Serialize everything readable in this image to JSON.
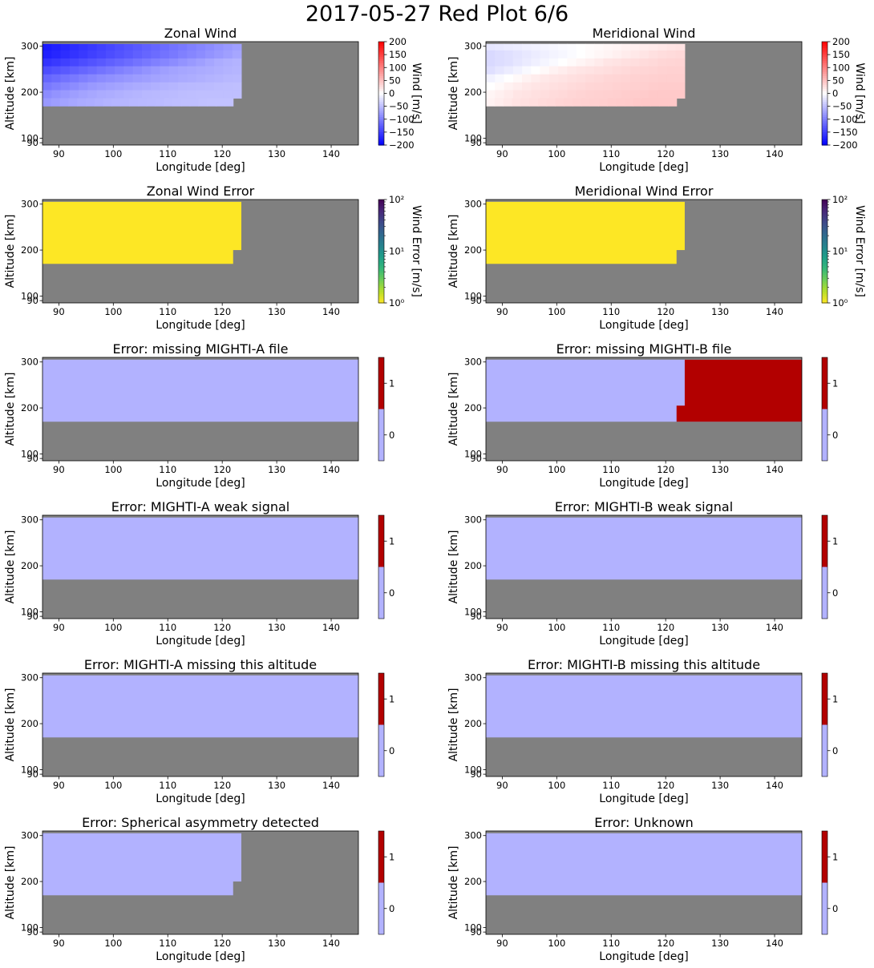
{
  "suptitle": "2017-05-27 Red Plot 6/6",
  "colors": {
    "missing": "#808080",
    "flag_off": "#b2b2ff",
    "flag_on": "#b20000",
    "error_low": "#fde725"
  },
  "chart_data": [
    {
      "type": "heatmap",
      "title": "Zonal Wind",
      "xlabel": "Longitude [deg]",
      "ylabel": "Altitude [km]",
      "xlim": [
        87,
        145
      ],
      "ylim": [
        85,
        310
      ],
      "xticks": [
        90,
        100,
        110,
        120,
        130,
        140
      ],
      "yticks": [
        90,
        100,
        200,
        300
      ],
      "colormap": "bwr",
      "clim": [
        -200,
        200
      ],
      "colorbar": {
        "label": "Wind [m/s]",
        "scale": "linear",
        "ticks": [
          "200",
          "150",
          "100",
          "50",
          "0",
          "−50",
          "−100",
          "−150",
          "−200"
        ]
      },
      "altitudes": [
        300,
        282,
        265,
        248,
        230,
        213,
        196,
        178
      ],
      "longitude_extent_by_row": [
        123.5,
        123.5,
        123.5,
        123.5,
        123.5,
        123.5,
        123.5,
        122
      ],
      "values": [
        [
          -180,
          -175,
          -170,
          -165,
          -160,
          -155,
          -150,
          -145,
          -140,
          -135,
          -130,
          -125,
          -120,
          -115,
          -110,
          -105,
          -100,
          -95,
          -90,
          -85,
          -80,
          -75
        ],
        [
          -175,
          -170,
          -165,
          -160,
          -155,
          -150,
          -145,
          -140,
          -135,
          -130,
          -125,
          -120,
          -115,
          -110,
          -105,
          -100,
          -95,
          -90,
          -85,
          -80,
          -75,
          -70
        ],
        [
          -160,
          -155,
          -150,
          -145,
          -140,
          -135,
          -130,
          -125,
          -120,
          -115,
          -110,
          -105,
          -100,
          -95,
          -90,
          -85,
          -80,
          -75,
          -70,
          -65,
          -62,
          -60
        ],
        [
          -140,
          -135,
          -130,
          -125,
          -120,
          -115,
          -110,
          -105,
          -100,
          -95,
          -90,
          -85,
          -80,
          -75,
          -72,
          -70,
          -68,
          -66,
          -64,
          -62,
          -60,
          -58
        ],
        [
          -120,
          -115,
          -110,
          -105,
          -100,
          -95,
          -90,
          -87,
          -84,
          -81,
          -78,
          -75,
          -72,
          -70,
          -68,
          -66,
          -64,
          -62,
          -60,
          -58,
          -56,
          -55
        ],
        [
          -105,
          -100,
          -95,
          -90,
          -85,
          -80,
          -77,
          -74,
          -71,
          -68,
          -66,
          -64,
          -62,
          -60,
          -58,
          -56,
          -55,
          -54,
          -53,
          -52,
          -51,
          -50
        ],
        [
          -90,
          -85,
          -80,
          -76,
          -72,
          -69,
          -66,
          -64,
          -62,
          -60,
          -58,
          -56,
          -55,
          -54,
          -53,
          -52,
          -51,
          -50,
          -50,
          -50,
          -50,
          -50
        ],
        [
          -80,
          -76,
          -72,
          -69,
          -66,
          -64,
          -62,
          -60,
          -58,
          -57,
          -56,
          -55,
          -54,
          -53,
          -52,
          -51,
          -50,
          -50,
          -49,
          -48,
          -48,
          -48
        ]
      ]
    },
    {
      "type": "heatmap",
      "title": "Meridional Wind",
      "xlabel": "Longitude [deg]",
      "ylabel": "Altitude [km]",
      "xlim": [
        87,
        145
      ],
      "ylim": [
        85,
        310
      ],
      "xticks": [
        90,
        100,
        110,
        120,
        130,
        140
      ],
      "yticks": [
        90,
        100,
        200,
        300
      ],
      "colormap": "bwr",
      "clim": [
        -200,
        200
      ],
      "colorbar": {
        "label": "Wind [m/s]",
        "scale": "linear",
        "ticks": [
          "200",
          "150",
          "100",
          "50",
          "0",
          "−50",
          "−100",
          "−150",
          "−200"
        ]
      },
      "altitudes": [
        300,
        282,
        265,
        248,
        230,
        213,
        196,
        178
      ],
      "longitude_extent_by_row": [
        123.5,
        123.5,
        123.5,
        123.5,
        123.5,
        123.5,
        123.5,
        122
      ],
      "values": [
        [
          -20,
          -18,
          -16,
          -14,
          -12,
          -10,
          -8,
          -6,
          -4,
          -2,
          0,
          2,
          4,
          6,
          8,
          10,
          12,
          14,
          16,
          18,
          20,
          22
        ],
        [
          -30,
          -27,
          -24,
          -21,
          -18,
          -15,
          -12,
          -9,
          -6,
          -3,
          0,
          3,
          6,
          9,
          12,
          15,
          18,
          21,
          24,
          27,
          28,
          30
        ],
        [
          -30,
          -27,
          -24,
          -20,
          -16,
          -12,
          -8,
          -4,
          0,
          4,
          8,
          12,
          16,
          20,
          22,
          24,
          26,
          28,
          30,
          32,
          33,
          34
        ],
        [
          -25,
          -20,
          -15,
          -10,
          -5,
          0,
          5,
          10,
          14,
          18,
          20,
          22,
          24,
          26,
          28,
          30,
          32,
          33,
          34,
          35,
          36,
          36
        ],
        [
          -10,
          -5,
          0,
          5,
          10,
          14,
          18,
          20,
          22,
          24,
          26,
          28,
          30,
          32,
          33,
          34,
          35,
          36,
          37,
          38,
          38,
          38
        ],
        [
          0,
          5,
          10,
          14,
          18,
          20,
          22,
          24,
          26,
          28,
          30,
          32,
          33,
          34,
          35,
          36,
          37,
          38,
          39,
          40,
          40,
          40
        ],
        [
          8,
          12,
          16,
          20,
          22,
          24,
          26,
          28,
          30,
          32,
          34,
          35,
          36,
          37,
          38,
          39,
          40,
          41,
          42,
          42,
          42,
          42
        ],
        [
          10,
          14,
          18,
          22,
          24,
          26,
          28,
          30,
          32,
          34,
          35,
          36,
          37,
          38,
          39,
          40,
          41,
          42,
          43,
          43,
          43,
          43
        ]
      ]
    },
    {
      "type": "heatmap",
      "title": "Zonal Wind Error",
      "xlabel": "Longitude [deg]",
      "ylabel": "Altitude [km]",
      "xlim": [
        87,
        145
      ],
      "ylim": [
        85,
        310
      ],
      "xticks": [
        90,
        100,
        110,
        120,
        130,
        140
      ],
      "yticks": [
        90,
        100,
        200,
        300
      ],
      "colormap": "viridis_r",
      "clim": [
        1,
        100
      ],
      "colorbar": {
        "label": "Wind Error [m/s]",
        "scale": "log",
        "ticks": [
          "10²",
          "10¹",
          "10⁰"
        ]
      },
      "regions": [
        {
          "lon": [
            87,
            123.5
          ],
          "alt": [
            200,
            300
          ],
          "value": 1
        },
        {
          "lon": [
            87,
            122
          ],
          "alt": [
            170,
            200
          ],
          "value": 1
        }
      ]
    },
    {
      "type": "heatmap",
      "title": "Meridional Wind Error",
      "xlabel": "Longitude [deg]",
      "ylabel": "Altitude [km]",
      "xlim": [
        87,
        145
      ],
      "ylim": [
        85,
        310
      ],
      "xticks": [
        90,
        100,
        110,
        120,
        130,
        140
      ],
      "yticks": [
        90,
        100,
        200,
        300
      ],
      "colormap": "viridis_r",
      "clim": [
        1,
        100
      ],
      "colorbar": {
        "label": "Wind Error [m/s]",
        "scale": "log",
        "ticks": [
          "10²",
          "10¹",
          "10⁰"
        ]
      },
      "regions": [
        {
          "lon": [
            87,
            123.5
          ],
          "alt": [
            200,
            300
          ],
          "value": 1
        },
        {
          "lon": [
            87,
            122
          ],
          "alt": [
            170,
            200
          ],
          "value": 1
        }
      ]
    },
    {
      "type": "heatmap",
      "title": "Error: missing MIGHTI-A file",
      "xlabel": "Longitude [deg]",
      "ylabel": "Altitude [km]",
      "xlim": [
        87,
        145
      ],
      "ylim": [
        85,
        310
      ],
      "xticks": [
        90,
        100,
        110,
        120,
        130,
        140
      ],
      "yticks": [
        90,
        100,
        200,
        300
      ],
      "colormap": "flag",
      "clim": [
        -0.5,
        1.5
      ],
      "colorbar": {
        "label": "",
        "scale": "discrete",
        "ticks": [
          "1",
          "0"
        ]
      },
      "regions": [
        {
          "lon": [
            87,
            145
          ],
          "alt": [
            170,
            300
          ],
          "value": 0
        }
      ]
    },
    {
      "type": "heatmap",
      "title": "Error: missing MIGHTI-B file",
      "xlabel": "Longitude [deg]",
      "ylabel": "Altitude [km]",
      "xlim": [
        87,
        145
      ],
      "ylim": [
        85,
        310
      ],
      "xticks": [
        90,
        100,
        110,
        120,
        130,
        140
      ],
      "yticks": [
        90,
        100,
        200,
        300
      ],
      "colormap": "flag",
      "clim": [
        -0.5,
        1.5
      ],
      "colorbar": {
        "label": "",
        "scale": "discrete",
        "ticks": [
          "1",
          "0"
        ]
      },
      "regions": [
        {
          "lon": [
            87,
            145
          ],
          "alt": [
            170,
            300
          ],
          "value": 0
        },
        {
          "lon": [
            123.5,
            145
          ],
          "alt": [
            200,
            300
          ],
          "value": 1
        },
        {
          "lon": [
            122,
            145
          ],
          "alt": [
            170,
            200
          ],
          "value": 1
        }
      ]
    },
    {
      "type": "heatmap",
      "title": "Error: MIGHTI-A weak signal",
      "xlabel": "Longitude [deg]",
      "ylabel": "Altitude [km]",
      "xlim": [
        87,
        145
      ],
      "ylim": [
        85,
        310
      ],
      "xticks": [
        90,
        100,
        110,
        120,
        130,
        140
      ],
      "yticks": [
        90,
        100,
        200,
        300
      ],
      "colormap": "flag",
      "clim": [
        -0.5,
        1.5
      ],
      "colorbar": {
        "label": "",
        "scale": "discrete",
        "ticks": [
          "1",
          "0"
        ]
      },
      "regions": [
        {
          "lon": [
            87,
            145
          ],
          "alt": [
            170,
            300
          ],
          "value": 0
        }
      ]
    },
    {
      "type": "heatmap",
      "title": "Error: MIGHTI-B weak signal",
      "xlabel": "Longitude [deg]",
      "ylabel": "Altitude [km]",
      "xlim": [
        87,
        145
      ],
      "ylim": [
        85,
        310
      ],
      "xticks": [
        90,
        100,
        110,
        120,
        130,
        140
      ],
      "yticks": [
        90,
        100,
        200,
        300
      ],
      "colormap": "flag",
      "clim": [
        -0.5,
        1.5
      ],
      "colorbar": {
        "label": "",
        "scale": "discrete",
        "ticks": [
          "1",
          "0"
        ]
      },
      "regions": [
        {
          "lon": [
            87,
            145
          ],
          "alt": [
            170,
            300
          ],
          "value": 0
        }
      ]
    },
    {
      "type": "heatmap",
      "title": "Error: MIGHTI-A missing this altitude",
      "xlabel": "Longitude [deg]",
      "ylabel": "Altitude [km]",
      "xlim": [
        87,
        145
      ],
      "ylim": [
        85,
        310
      ],
      "xticks": [
        90,
        100,
        110,
        120,
        130,
        140
      ],
      "yticks": [
        90,
        100,
        200,
        300
      ],
      "colormap": "flag",
      "clim": [
        -0.5,
        1.5
      ],
      "colorbar": {
        "label": "",
        "scale": "discrete",
        "ticks": [
          "1",
          "0"
        ]
      },
      "regions": [
        {
          "lon": [
            87,
            145
          ],
          "alt": [
            170,
            300
          ],
          "value": 0
        }
      ]
    },
    {
      "type": "heatmap",
      "title": "Error: MIGHTI-B missing this altitude",
      "xlabel": "Longitude [deg]",
      "ylabel": "Altitude [km]",
      "xlim": [
        87,
        145
      ],
      "ylim": [
        85,
        310
      ],
      "xticks": [
        90,
        100,
        110,
        120,
        130,
        140
      ],
      "yticks": [
        90,
        100,
        200,
        300
      ],
      "colormap": "flag",
      "clim": [
        -0.5,
        1.5
      ],
      "colorbar": {
        "label": "",
        "scale": "discrete",
        "ticks": [
          "1",
          "0"
        ]
      },
      "regions": [
        {
          "lon": [
            87,
            145
          ],
          "alt": [
            170,
            300
          ],
          "value": 0
        }
      ]
    },
    {
      "type": "heatmap",
      "title": "Error: Spherical asymmetry detected",
      "xlabel": "Longitude [deg]",
      "ylabel": "Altitude [km]",
      "xlim": [
        87,
        145
      ],
      "ylim": [
        85,
        310
      ],
      "xticks": [
        90,
        100,
        110,
        120,
        130,
        140
      ],
      "yticks": [
        90,
        100,
        200,
        300
      ],
      "colormap": "flag",
      "clim": [
        -0.5,
        1.5
      ],
      "colorbar": {
        "label": "",
        "scale": "discrete",
        "ticks": [
          "1",
          "0"
        ]
      },
      "regions": [
        {
          "lon": [
            87,
            123.5
          ],
          "alt": [
            200,
            300
          ],
          "value": 0
        },
        {
          "lon": [
            87,
            122
          ],
          "alt": [
            170,
            200
          ],
          "value": 0
        }
      ]
    },
    {
      "type": "heatmap",
      "title": "Error: Unknown",
      "xlabel": "Longitude [deg]",
      "ylabel": "Altitude [km]",
      "xlim": [
        87,
        145
      ],
      "ylim": [
        85,
        310
      ],
      "xticks": [
        90,
        100,
        110,
        120,
        130,
        140
      ],
      "yticks": [
        90,
        100,
        200,
        300
      ],
      "colormap": "flag",
      "clim": [
        -0.5,
        1.5
      ],
      "colorbar": {
        "label": "",
        "scale": "discrete",
        "ticks": [
          "1",
          "0"
        ]
      },
      "regions": [
        {
          "lon": [
            87,
            145
          ],
          "alt": [
            170,
            300
          ],
          "value": 0
        }
      ]
    }
  ]
}
